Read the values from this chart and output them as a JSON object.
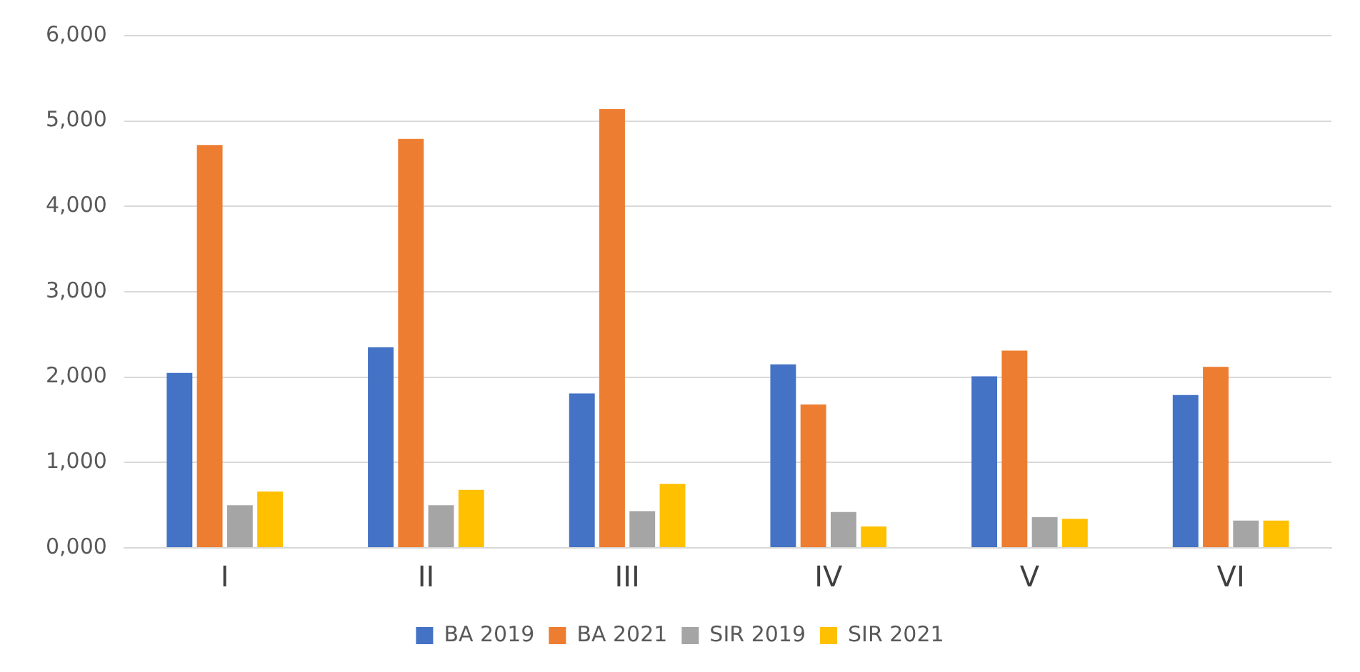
{
  "chart_data": {
    "type": "bar",
    "categories": [
      "I",
      "II",
      "III",
      "IV",
      "V",
      "VI"
    ],
    "series": [
      {
        "name": "BA 2019",
        "color": "#4472c4",
        "values": [
          2050,
          2350,
          1810,
          2150,
          2010,
          1790
        ]
      },
      {
        "name": "BA 2021",
        "color": "#ed7d31",
        "values": [
          4720,
          4790,
          5140,
          1680,
          2310,
          2120
        ]
      },
      {
        "name": "SIR 2019",
        "color": "#a5a5a5",
        "values": [
          500,
          500,
          430,
          420,
          360,
          320
        ]
      },
      {
        "name": "SIR 2021",
        "color": "#ffc000",
        "values": [
          660,
          680,
          750,
          250,
          340,
          320
        ]
      }
    ],
    "ylim": [
      0,
      6000
    ],
    "yticks": [
      {
        "value": 0,
        "label": "0,000"
      },
      {
        "value": 1000,
        "label": "1,000"
      },
      {
        "value": 2000,
        "label": "2,000"
      },
      {
        "value": 3000,
        "label": "3,000"
      },
      {
        "value": 4000,
        "label": "4,000"
      },
      {
        "value": 5000,
        "label": "5,000"
      },
      {
        "value": 6000,
        "label": "6,000"
      }
    ],
    "grid": "y",
    "legend": "bottom"
  }
}
